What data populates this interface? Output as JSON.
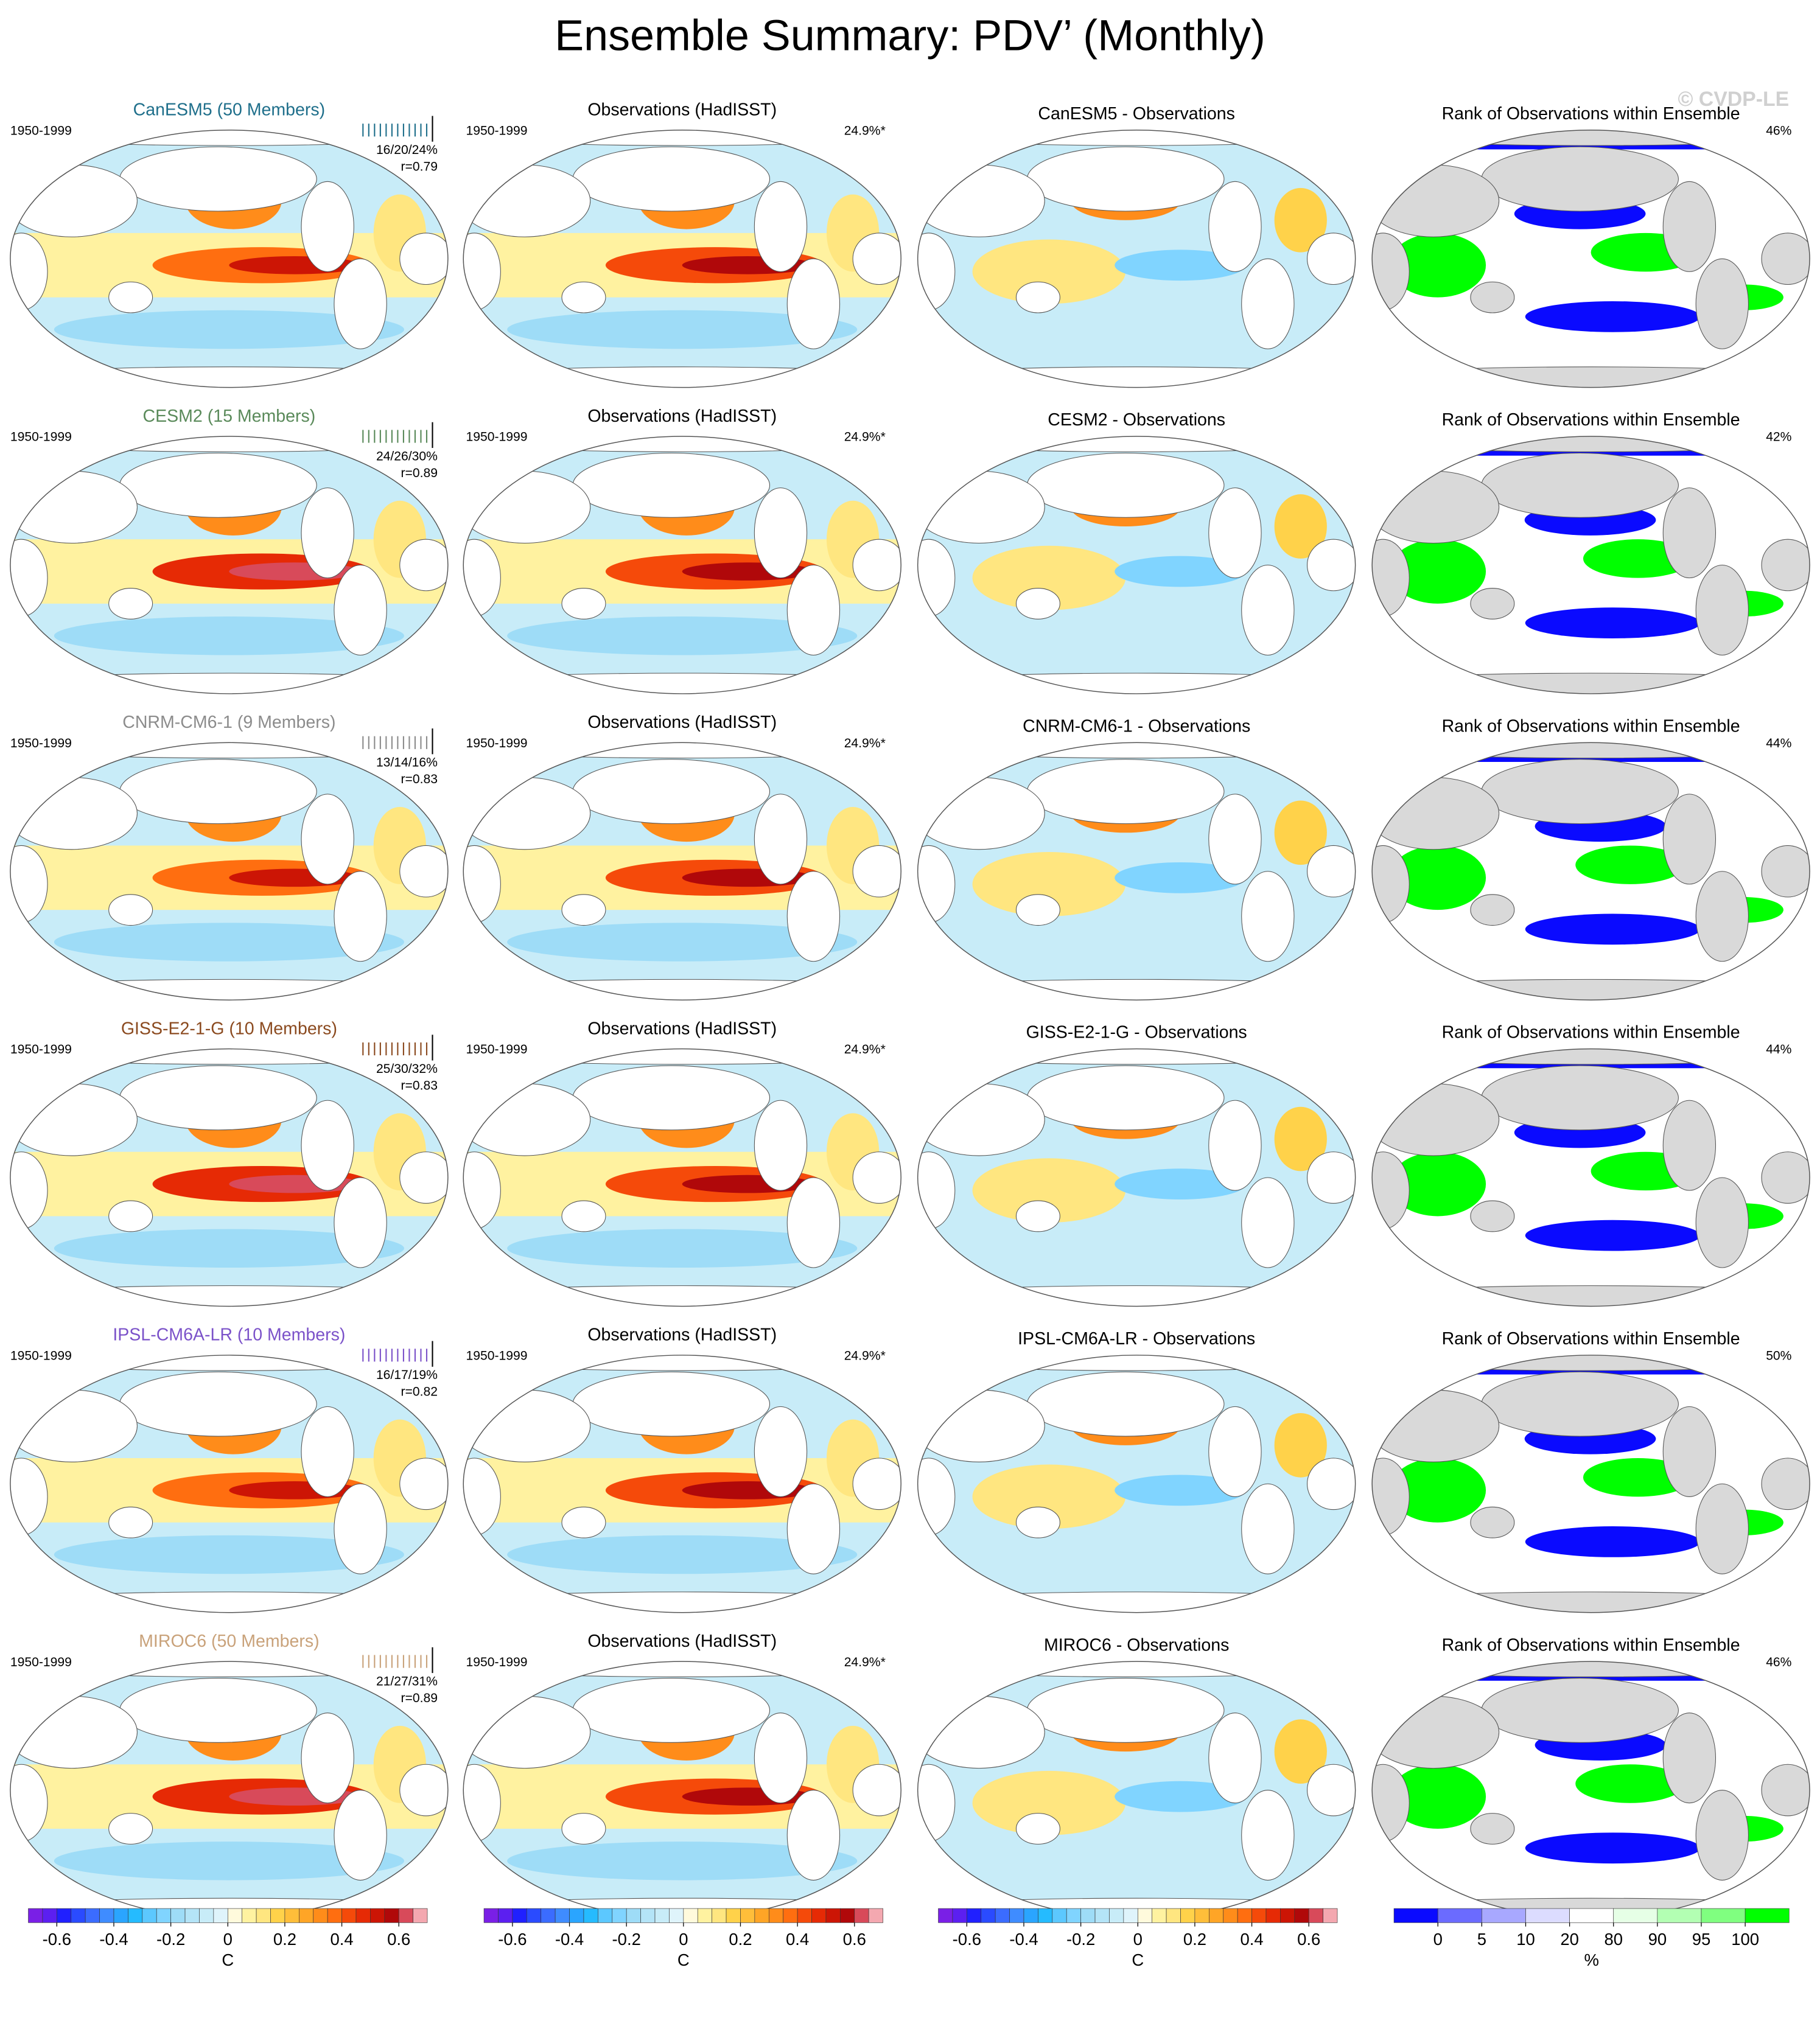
{
  "title": "Ensemble Summary: PDV’ (Monthly)",
  "watermark": "© CVDP-LE",
  "rows": [
    {
      "model": "CanESM5 (50 Members)",
      "model_color": "#1f6f8b",
      "period": "1950-1999",
      "stats": "16/20/24%",
      "r": "r=0.79",
      "obs_title": "Observations (HadISST)",
      "obs_period": "1950-1999",
      "obs_pct": "24.9%*",
      "diff_title": "CanESM5 - Observations",
      "rank_title": "Rank of Observations within Ensemble",
      "rank_pct": "46%"
    },
    {
      "model": "CESM2 (15 Members)",
      "model_color": "#5a8a5a",
      "period": "1950-1999",
      "stats": "24/26/30%",
      "r": "r=0.89",
      "obs_title": "Observations (HadISST)",
      "obs_period": "1950-1999",
      "obs_pct": "24.9%*",
      "diff_title": "CESM2 - Observations",
      "rank_title": "Rank of Observations within Ensemble",
      "rank_pct": "42%"
    },
    {
      "model": "CNRM-CM6-1 (9 Members)",
      "model_color": "#8c8c8c",
      "period": "1950-1999",
      "stats": "13/14/16%",
      "r": "r=0.83",
      "obs_title": "Observations (HadISST)",
      "obs_period": "1950-1999",
      "obs_pct": "24.9%*",
      "diff_title": "CNRM-CM6-1 - Observations",
      "rank_title": "Rank of Observations within Ensemble",
      "rank_pct": "44%"
    },
    {
      "model": "GISS-E2-1-G (10 Members)",
      "model_color": "#8b4a1f",
      "period": "1950-1999",
      "stats": "25/30/32%",
      "r": "r=0.83",
      "obs_title": "Observations (HadISST)",
      "obs_period": "1950-1999",
      "obs_pct": "24.9%*",
      "diff_title": "GISS-E2-1-G - Observations",
      "rank_title": "Rank of Observations within Ensemble",
      "rank_pct": "44%"
    },
    {
      "model": "IPSL-CM6A-LR (10 Members)",
      "model_color": "#7b52c9",
      "period": "1950-1999",
      "stats": "16/17/19%",
      "r": "r=0.82",
      "obs_title": "Observations (HadISST)",
      "obs_period": "1950-1999",
      "obs_pct": "24.9%*",
      "diff_title": "IPSL-CM6A-LR - Observations",
      "rank_title": "Rank of Observations within Ensemble",
      "rank_pct": "50%"
    },
    {
      "model": "MIROC6 (50 Members)",
      "model_color": "#c9a27a",
      "period": "1950-1999",
      "stats": "21/27/31%",
      "r": "r=0.89",
      "obs_title": "Observations (HadISST)",
      "obs_period": "1950-1999",
      "obs_pct": "24.9%*",
      "diff_title": "MIROC6 - Observations",
      "rank_title": "Rank of Observations within Ensemble",
      "rank_pct": "46%"
    }
  ],
  "temperature_colors": [
    "#7a1fe6",
    "#5c1ff0",
    "#2020ff",
    "#2a4bff",
    "#3b6cff",
    "#3f8cff",
    "#2aa5ff",
    "#25bbff",
    "#5cc8ff",
    "#80d4ff",
    "#9edcf7",
    "#b4e4f7",
    "#c8ecf8",
    "#dff4fb",
    "#fffadc",
    "#fff2a0",
    "#ffe680",
    "#ffd24a",
    "#ffbe3a",
    "#ffa526",
    "#ff8c1a",
    "#ff6e10",
    "#f54a0a",
    "#e62a05",
    "#cc1505",
    "#b0080a",
    "#d84a5a",
    "#f4a8b0"
  ],
  "colorbars": [
    {
      "lim": [
        -0.7,
        0.7
      ],
      "ticks": [
        -0.6,
        -0.4,
        -0.2,
        0,
        0.2,
        0.4,
        0.6
      ],
      "label": "C"
    },
    {
      "lim": [
        -0.7,
        0.7
      ],
      "ticks": [
        -0.6,
        -0.4,
        -0.2,
        0,
        0.2,
        0.4,
        0.6
      ],
      "label": "C"
    },
    {
      "lim": [
        -0.7,
        0.7
      ],
      "ticks": [
        -0.6,
        -0.4,
        -0.2,
        0,
        0.2,
        0.4,
        0.6
      ],
      "label": "C"
    }
  ],
  "rank_colorbar": {
    "colors": [
      "#0a0aff",
      "#6b6bff",
      "#a8a8ff",
      "#dcdcff",
      "#ffffff",
      "#e6ffe6",
      "#b3ffb3",
      "#80ff80",
      "#00ff00"
    ],
    "ticks": [
      0,
      5,
      10,
      20,
      80,
      90,
      95,
      100
    ],
    "label": "%"
  }
}
